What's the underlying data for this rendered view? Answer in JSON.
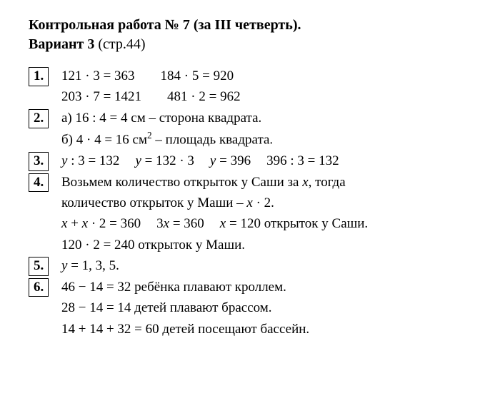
{
  "title": "Контрольная работа № 7 (за III четверть).",
  "subtitle_bold": "Вариант 3",
  "subtitle_rest": " (стр.44)",
  "items": [
    {
      "num": "1.",
      "lines": [
        {
          "segments": [
            "121 · 3 = 363",
            "184 · 5 = 920"
          ],
          "gap": "gap"
        },
        {
          "segments": [
            "203 · 7 = 1421",
            "481 · 2 = 962"
          ],
          "gap": "gap"
        }
      ]
    },
    {
      "num": "2.",
      "lines": [
        {
          "text": "а) 16 : 4 = 4 см – сторона квадрата."
        },
        {
          "html": "б) 4 · 4 = 16 см<sup>2</sup> – площадь квадрата."
        }
      ]
    },
    {
      "num": "3.",
      "lines": [
        {
          "html": "<span class='ital'>y</span> : 3 = 132<span class='gap-sm'></span><span class='ital'>y</span> = 132 · 3<span class='gap-sm'></span><span class='ital'>y</span> = 396<span class='gap-sm'></span>396 : 3 = 132"
        }
      ]
    },
    {
      "num": "4.",
      "lines": [
        {
          "html": "Возьмем количество открыток у Саши за <span class='ital'>x</span>, тогда"
        },
        {
          "html": "количество открыток у Маши – <span class='ital'>x</span> · 2."
        },
        {
          "html": "<span class='ital'>x</span> + <span class='ital'>x</span> · 2 = 360<span class='gap-sm'></span>3<span class='ital'>x</span> = 360<span class='gap-sm'></span><span class='ital'>x</span> = 120 открыток у Саши."
        },
        {
          "text": "120 · 2 = 240 открыток у Маши."
        }
      ]
    },
    {
      "num": "5.",
      "lines": [
        {
          "html": "<span class='ital'>y</span> = 1,  3,  5."
        }
      ]
    },
    {
      "num": "6.",
      "lines": [
        {
          "text": "46 − 14 = 32 ребёнка плавают кроллем."
        },
        {
          "text": "28 − 14 = 14 детей плавают брассом."
        },
        {
          "text": "14 + 14 + 32 = 60 детей посещают бассейн."
        }
      ]
    }
  ]
}
